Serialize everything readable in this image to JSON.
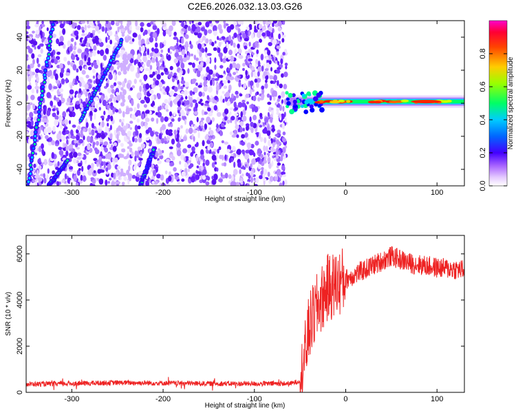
{
  "chart_data": [
    {
      "type": "heatmap",
      "title": "C2E6.2026.032.13.03.G26",
      "xlabel": "Height of straight line (km)",
      "ylabel": "Frequency (Hz)",
      "xlim": [
        -350,
        130
      ],
      "ylim": [
        -50,
        50
      ],
      "xticks": [
        -300,
        -200,
        -100,
        0,
        100
      ],
      "xtick_labels": [
        "-300",
        "-200",
        "-100",
        "0",
        "100"
      ],
      "yticks": [
        -40,
        -20,
        0,
        20,
        40
      ],
      "ytick_labels": [
        "-40",
        "-20",
        "0",
        "20",
        "40"
      ],
      "noise_region_x": [
        -350,
        -65
      ],
      "tone_segments": [
        {
          "x": [
            -348,
            -320
          ],
          "f": [
            -50,
            50
          ]
        },
        {
          "x": [
            -290,
            -245
          ],
          "f": [
            -10,
            38
          ]
        },
        {
          "x": [
            -325,
            -305
          ],
          "f": [
            -50,
            -35
          ]
        },
        {
          "x": [
            -225,
            -210
          ],
          "f": [
            -50,
            -28
          ]
        }
      ],
      "main_signal": {
        "x_start": -65,
        "x_end": 130,
        "frequency": 1
      },
      "colorbar": {
        "label": "Normalized spectral amplitude",
        "range": [
          0,
          1
        ],
        "ticks": [
          0.0,
          0.2,
          0.4,
          0.6,
          0.8
        ],
        "tick_labels": [
          "0.0",
          "0.2",
          "0.4",
          "0.6",
          "0.8"
        ],
        "colors": [
          "#ffffff",
          "#cc99ff",
          "#6600ff",
          "#0000ff",
          "#00ccff",
          "#00ff66",
          "#ccff00",
          "#ffcc00",
          "#ff6600",
          "#ff0000",
          "#ff00cc"
        ]
      }
    },
    {
      "type": "line",
      "xlabel": "Height of straight line (km)",
      "ylabel": "SNR (10 * v/v)",
      "xlim": [
        -350,
        130
      ],
      "ylim": [
        0,
        6800
      ],
      "xticks": [
        -300,
        -200,
        -100,
        0,
        100
      ],
      "xtick_labels": [
        "-300",
        "-200",
        "-100",
        "0",
        "100"
      ],
      "yticks": [
        0,
        2000,
        4000,
        6000
      ],
      "ytick_labels": [
        "0",
        "2000",
        "4000",
        "6000"
      ],
      "color": "#ee2222",
      "profile_x": [
        -350,
        -300,
        -250,
        -200,
        -150,
        -100,
        -60,
        -50,
        -45,
        -40,
        -30,
        -20,
        -10,
        0,
        20,
        40,
        50,
        70,
        100,
        130
      ],
      "profile_y": [
        350,
        380,
        420,
        400,
        380,
        370,
        380,
        500,
        1500,
        2800,
        3800,
        4500,
        4700,
        4900,
        5300,
        5700,
        5900,
        5600,
        5400,
        5300
      ]
    }
  ]
}
